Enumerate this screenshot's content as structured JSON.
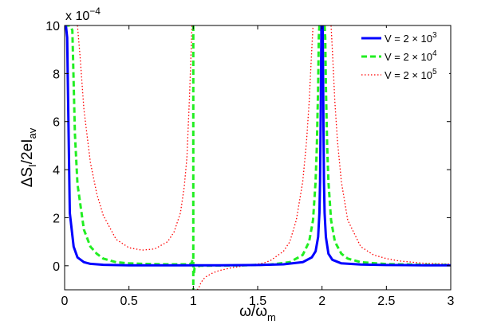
{
  "chart_data": {
    "type": "line",
    "xlabel": "ω/ω",
    "xlabel_sub": "m",
    "ylabel_parts": [
      "ΔS",
      "I",
      "/2eI",
      "av"
    ],
    "y_multiplier": "x 10",
    "y_multiplier_exp": "−4",
    "xlim": [
      0,
      3
    ],
    "ylim": [
      -1,
      10
    ],
    "x_ticks": [
      0,
      0.5,
      1,
      1.5,
      2,
      2.5,
      3
    ],
    "x_tick_labels": [
      "0",
      "0.5",
      "1",
      "1.5",
      "2",
      "2.5",
      "3"
    ],
    "y_ticks": [
      0,
      2,
      4,
      6,
      8,
      10
    ],
    "y_tick_labels": [
      "0",
      "2",
      "4",
      "6",
      "8",
      "10"
    ],
    "grid": false,
    "legend_position": "top-right",
    "series": [
      {
        "name_base": "V = 2 × 10",
        "name_exp": "3",
        "color": "#0000ff",
        "style": "solid",
        "width": 3,
        "segments": [
          {
            "x": [
              0.0,
              0.01,
              0.02,
              0.04,
              0.07,
              0.1,
              0.15,
              0.2,
              0.3,
              0.5,
              0.7,
              0.9,
              1.0,
              1.2,
              1.5,
              1.7,
              1.85,
              1.92,
              1.95,
              1.97,
              1.98,
              1.985,
              1.99,
              1.995
            ],
            "y": [
              10,
              10,
              9.5,
              2.2,
              0.8,
              0.35,
              0.15,
              0.08,
              0.04,
              0.02,
              0.02,
              0.02,
              0.02,
              0.02,
              0.03,
              0.06,
              0.15,
              0.35,
              0.6,
              1.2,
              2.2,
              3.5,
              6.5,
              10
            ]
          },
          {
            "x": [
              2.005,
              2.01,
              2.015,
              2.02,
              2.03,
              2.05,
              2.08,
              2.15,
              2.3,
              2.5,
              2.8,
              3.0
            ],
            "y": [
              10,
              6.5,
              3.5,
              2.2,
              1.2,
              0.5,
              0.25,
              0.1,
              0.05,
              0.03,
              0.02,
              0.02
            ]
          }
        ]
      },
      {
        "name_base": "V = 2 × 10",
        "name_exp": "4",
        "color": "#22ee22",
        "style": "dashed",
        "width": 3,
        "segments": [
          {
            "x": [
              0.0,
              0.04,
              0.06,
              0.08,
              0.1,
              0.15,
              0.2,
              0.25,
              0.3,
              0.4,
              0.5,
              0.6,
              0.7,
              0.8,
              0.9,
              0.95,
              0.98,
              0.99,
              0.995
            ],
            "y": [
              10,
              10,
              9.8,
              5.5,
              3.4,
              1.5,
              0.8,
              0.5,
              0.3,
              0.15,
              0.1,
              0.08,
              0.07,
              0.06,
              0.06,
              0.06,
              0.08,
              0.15,
              0.3
            ]
          },
          {
            "x": [
              1.0,
              1.0
            ],
            "y": [
              10,
              -1
            ]
          },
          {
            "x": [
              1.005,
              1.01,
              1.05,
              1.2,
              1.4,
              1.6,
              1.75,
              1.85,
              1.9,
              1.93,
              1.95,
              1.96,
              1.97,
              1.975,
              1.98
            ],
            "y": [
              -0.3,
              -0.1,
              0.0,
              0.01,
              0.02,
              0.05,
              0.15,
              0.45,
              1.0,
              1.9,
              3.5,
              5.0,
              7.5,
              9.5,
              10
            ]
          },
          {
            "x": [
              2.02,
              2.025,
              2.03,
              2.04,
              2.05,
              2.07,
              2.1,
              2.15,
              2.2,
              2.3,
              2.5,
              2.8,
              3.0
            ],
            "y": [
              10,
              9.5,
              7.5,
              5.0,
              3.5,
              1.9,
              1.0,
              0.5,
              0.3,
              0.15,
              0.07,
              0.04,
              0.03
            ]
          }
        ]
      },
      {
        "name_base": "V = 2 × 10",
        "name_exp": "5",
        "color": "#ff0000",
        "style": "dotted",
        "width": 1.3,
        "segments": [
          {
            "x": [
              0.1,
              0.12,
              0.15,
              0.2,
              0.25,
              0.3,
              0.4,
              0.5,
              0.6,
              0.7,
              0.8,
              0.85,
              0.9,
              0.93,
              0.95,
              0.97,
              0.98,
              0.99
            ],
            "y": [
              10,
              8.7,
              6.5,
              4.3,
              3.0,
              2.1,
              1.1,
              0.75,
              0.65,
              0.7,
              1.0,
              1.4,
              2.2,
              3.3,
              4.5,
              7.0,
              8.5,
              10
            ]
          },
          {
            "x": [
              1.03,
              1.04,
              1.06,
              1.08,
              1.1,
              1.15,
              1.2,
              1.3,
              1.4,
              1.5,
              1.55,
              1.6,
              1.7,
              1.75,
              1.8,
              1.85,
              1.88,
              1.9,
              1.92,
              1.93
            ],
            "y": [
              -1.0,
              -0.95,
              -0.7,
              -0.55,
              -0.45,
              -0.3,
              -0.2,
              -0.08,
              0.0,
              0.07,
              0.12,
              0.22,
              0.6,
              1.0,
              1.9,
              3.5,
              5.2,
              6.8,
              9.0,
              10
            ]
          },
          {
            "x": [
              2.07,
              2.08,
              2.1,
              2.12,
              2.15,
              2.2,
              2.3,
              2.4,
              2.5,
              2.6,
              2.8,
              3.0
            ],
            "y": [
              10,
              9.0,
              6.8,
              5.2,
              3.5,
              1.9,
              0.8,
              0.45,
              0.3,
              0.2,
              0.1,
              0.07
            ]
          }
        ]
      }
    ]
  }
}
